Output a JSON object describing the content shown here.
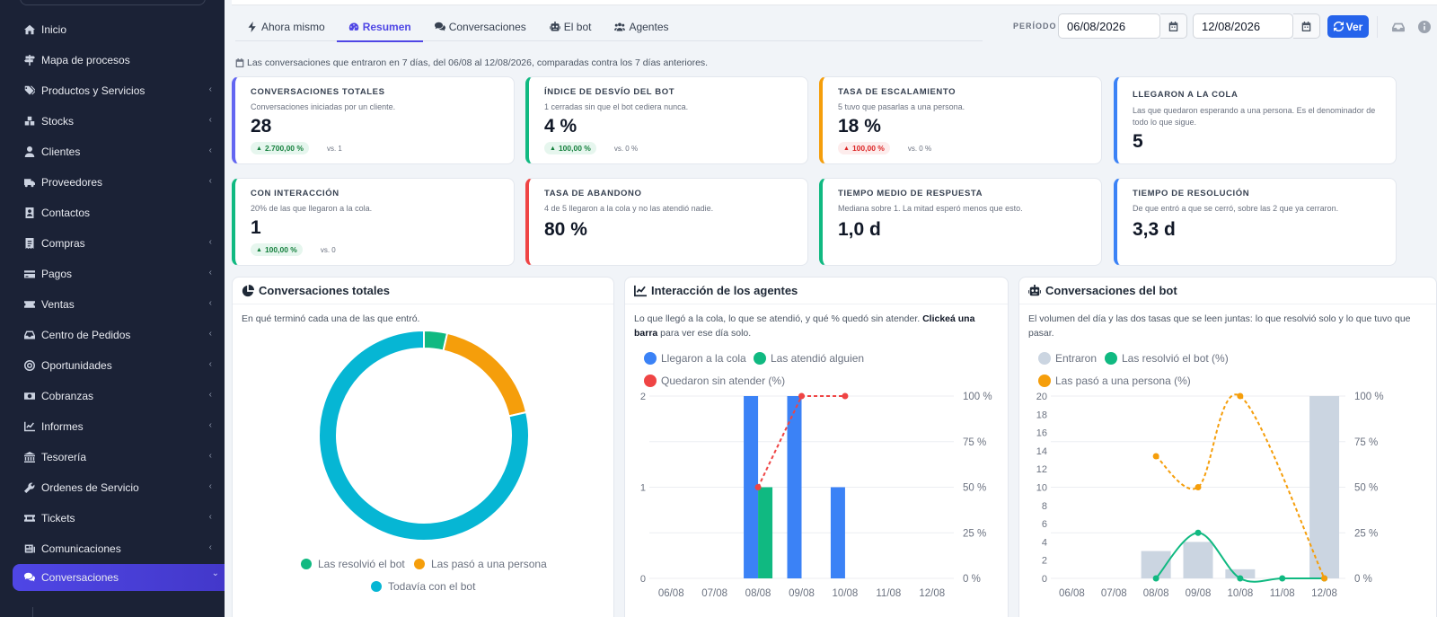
{
  "sidebar": {
    "items": [
      {
        "label": "Inicio",
        "icon": "home-icon",
        "chev": false
      },
      {
        "label": "Mapa de procesos",
        "icon": "signpost-icon",
        "chev": false
      },
      {
        "label": "Productos y Servicios",
        "icon": "tags-icon",
        "chev": true
      },
      {
        "label": "Stocks",
        "icon": "boxes-icon",
        "chev": true
      },
      {
        "label": "Clientes",
        "icon": "user-icon",
        "chev": true
      },
      {
        "label": "Proveedores",
        "icon": "truck-icon",
        "chev": true
      },
      {
        "label": "Contactos",
        "icon": "address-book-icon",
        "chev": false
      },
      {
        "label": "Compras",
        "icon": "receipt-icon",
        "chev": true
      },
      {
        "label": "Pagos",
        "icon": "credit-card-icon",
        "chev": true
      },
      {
        "label": "Ventas",
        "icon": "ticket-icon",
        "chev": true
      },
      {
        "label": "Centro de Pedidos",
        "icon": "inbox-icon",
        "chev": true
      },
      {
        "label": "Oportunidades",
        "icon": "target-icon",
        "chev": true
      },
      {
        "label": "Cobranzas",
        "icon": "money-icon",
        "chev": true
      },
      {
        "label": "Informes",
        "icon": "chart-line-icon",
        "chev": true
      },
      {
        "label": "Tesorería",
        "icon": "vault-icon",
        "chev": true
      },
      {
        "label": "Ordenes de Servicio",
        "icon": "wrench-icon",
        "chev": true
      },
      {
        "label": "Tickets",
        "icon": "ticket-alt-icon",
        "chev": true
      },
      {
        "label": "Comunicaciones",
        "icon": "newspaper-icon",
        "chev": true
      },
      {
        "label": "Conversaciones",
        "icon": "comments-icon",
        "chev": true,
        "active": true
      }
    ]
  },
  "tabs": [
    {
      "label": "Ahora mismo",
      "icon": "bolt-icon"
    },
    {
      "label": "Resumen",
      "icon": "gauge-icon",
      "active": true
    },
    {
      "label": "Conversaciones",
      "icon": "comments-icon"
    },
    {
      "label": "El bot",
      "icon": "robot-icon"
    },
    {
      "label": "Agentes",
      "icon": "users-icon"
    }
  ],
  "period": {
    "label": "PERÍODO",
    "from": "06/08/2026",
    "to": "12/08/2026",
    "button": "Ver"
  },
  "note": "Las conversaciones que entraron en 7 días, del 06/08 al 12/08/2026, comparadas contra los 7 días anteriores.",
  "kpis": [
    {
      "title": "CONVERSACIONES TOTALES",
      "sub": "Conversaciones iniciadas por un cliente.",
      "value": "28",
      "badge": "2.700,00 %",
      "badge_type": "up",
      "vs": "vs. 1",
      "color": "#6366f1"
    },
    {
      "title": "ÍNDICE DE DESVÍO DEL BOT",
      "sub": "1 cerradas sin que el bot cediera nunca.",
      "value": "4 %",
      "badge": "100,00 %",
      "badge_type": "up",
      "vs": "vs. 0 %",
      "color": "#10b981"
    },
    {
      "title": "TASA DE ESCALAMIENTO",
      "sub": "5 tuvo que pasarlas a una persona.",
      "value": "18 %",
      "badge": "100,00 %",
      "badge_type": "red",
      "vs": "vs. 0 %",
      "color": "#f59e0b"
    },
    {
      "title": "LLEGARON A LA COLA",
      "sub": "Las que quedaron esperando a una persona. Es el denominador de todo lo que sigue.",
      "value": "5",
      "badge": "",
      "vs": "",
      "color": "#3b82f6"
    },
    {
      "title": "CON INTERACCIÓN",
      "sub": "20% de las que llegaron a la cola.",
      "value": "1",
      "badge": "100,00 %",
      "badge_type": "up",
      "vs": "vs. 0",
      "color": "#10b981"
    },
    {
      "title": "TASA DE ABANDONO",
      "sub": "4 de 5 llegaron a la cola y no las atendió nadie.",
      "value": "80 %",
      "badge": "",
      "vs": "",
      "color": "#ef4444"
    },
    {
      "title": "TIEMPO MEDIO DE RESPUESTA",
      "sub": "Mediana sobre 1. La mitad esperó menos que esto.",
      "value": "1,0 d",
      "badge": "",
      "vs": "",
      "color": "#10b981"
    },
    {
      "title": "TIEMPO DE RESOLUCIÓN",
      "sub": "De que entró a que se cerró, sobre las 2 que ya cerraron.",
      "value": "3,3 d",
      "badge": "",
      "vs": "",
      "color": "#3b82f6"
    }
  ],
  "cards": {
    "c1": {
      "title": "Conversaciones totales",
      "desc": "En qué terminó cada una de las que entró."
    },
    "c2": {
      "title": "Interacción de los agentes",
      "desc_a": "Lo que llegó a la cola, lo que se atendió, y qué % quedó sin atender. ",
      "desc_b": "Clickeá una barra",
      "desc_c": " para ver ese día solo."
    },
    "c3": {
      "title": "Conversaciones del bot",
      "desc": "El volumen del día y las dos tasas que se leen juntas: lo que resolvió solo y lo que tuvo que pasar."
    }
  },
  "chart_data": [
    {
      "type": "pie",
      "title": "Conversaciones totales",
      "categories": [
        "Las resolvió el bot",
        "Las pasó a una persona",
        "Todavía con el bot"
      ],
      "values": [
        1,
        5,
        22
      ],
      "colors": [
        "#10b981",
        "#f59e0b",
        "#06b6d4"
      ],
      "legend": "bottom"
    },
    {
      "type": "bar",
      "title": "Interacción de los agentes",
      "categories": [
        "06/08",
        "07/08",
        "08/08",
        "09/08",
        "10/08",
        "11/08",
        "12/08"
      ],
      "series": [
        {
          "name": "Llegaron a la cola",
          "values": [
            0,
            0,
            2,
            2,
            1,
            0,
            0
          ],
          "color": "#3b82f6"
        },
        {
          "name": "Las atendió alguien",
          "values": [
            0,
            0,
            1,
            0,
            0,
            0,
            0
          ],
          "color": "#10b981"
        },
        {
          "name": "Quedaron sin atender (%)",
          "values": [
            null,
            null,
            50,
            100,
            100,
            null,
            null
          ],
          "color": "#ef4444",
          "type": "line",
          "axis": "right"
        }
      ],
      "ylim": [
        0,
        2
      ],
      "yticks": [
        "0",
        "1",
        "2"
      ],
      "y2ticks": [
        "0 %",
        "25 %",
        "50 %",
        "75 %",
        "100 %"
      ],
      "legend": "top-left"
    },
    {
      "type": "bar",
      "title": "Conversaciones del bot",
      "categories": [
        "06/08",
        "07/08",
        "08/08",
        "09/08",
        "10/08",
        "11/08",
        "12/08"
      ],
      "series": [
        {
          "name": "Entraron",
          "values": [
            0,
            0,
            3,
            4,
            1,
            0,
            20
          ],
          "color": "#cbd5e1"
        },
        {
          "name": "Las resolvió el bot (%)",
          "values": [
            null,
            null,
            0,
            25,
            0,
            0,
            0
          ],
          "color": "#10b981",
          "type": "line",
          "axis": "right"
        },
        {
          "name": "Las pasó a una persona (%)",
          "values": [
            null,
            null,
            67,
            50,
            100,
            null,
            0
          ],
          "color": "#f59e0b",
          "type": "line",
          "axis": "right"
        }
      ],
      "ylim": [
        0,
        20
      ],
      "yticks": [
        "0",
        "2",
        "4",
        "6",
        "8",
        "10",
        "12",
        "14",
        "16",
        "18",
        "20"
      ],
      "y2ticks": [
        "0 %",
        "25 %",
        "50 %",
        "75 %",
        "100 %"
      ],
      "legend": "top-left"
    }
  ]
}
